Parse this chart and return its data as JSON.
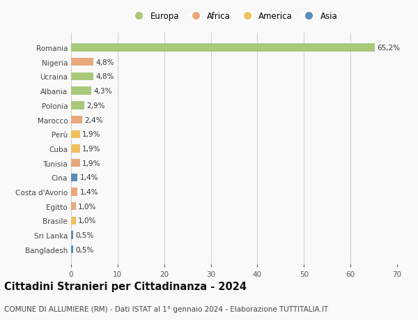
{
  "countries": [
    "Romania",
    "Nigeria",
    "Ucraina",
    "Albania",
    "Polonia",
    "Marocco",
    "Perù",
    "Cuba",
    "Tunisia",
    "Cina",
    "Costa d'Avorio",
    "Egitto",
    "Brasile",
    "Sri Lanka",
    "Bangladesh"
  ],
  "values": [
    65.2,
    4.8,
    4.8,
    4.3,
    2.9,
    2.4,
    1.9,
    1.9,
    1.9,
    1.4,
    1.4,
    1.0,
    1.0,
    0.5,
    0.5
  ],
  "labels": [
    "65,2%",
    "4,8%",
    "4,8%",
    "4,3%",
    "2,9%",
    "2,4%",
    "1,9%",
    "1,9%",
    "1,9%",
    "1,4%",
    "1,4%",
    "1,0%",
    "1,0%",
    "0,5%",
    "0,5%"
  ],
  "continents": [
    "Europa",
    "Africa",
    "Europa",
    "Europa",
    "Europa",
    "Africa",
    "America",
    "America",
    "Africa",
    "Asia",
    "Africa",
    "Africa",
    "America",
    "Asia",
    "Asia"
  ],
  "colors": {
    "Europa": "#a8c87a",
    "Africa": "#e8a87c",
    "America": "#f0c060",
    "Asia": "#5b8db8"
  },
  "title": "Cittadini Stranieri per Cittadinanza - 2024",
  "subtitle": "COMUNE DI ALLUMIERE (RM) - Dati ISTAT al 1° gennaio 2024 - Elaborazione TUTTITALIA.IT",
  "xlim": [
    0,
    70
  ],
  "xticks": [
    0,
    10,
    20,
    30,
    40,
    50,
    60,
    70
  ],
  "background_color": "#f9f9f9",
  "grid_color": "#cccccc",
  "bar_height": 0.55,
  "label_fontsize": 7.5,
  "tick_fontsize": 7.5,
  "title_fontsize": 10.5,
  "subtitle_fontsize": 7.5,
  "legend_order": [
    "Europa",
    "Africa",
    "America",
    "Asia"
  ]
}
